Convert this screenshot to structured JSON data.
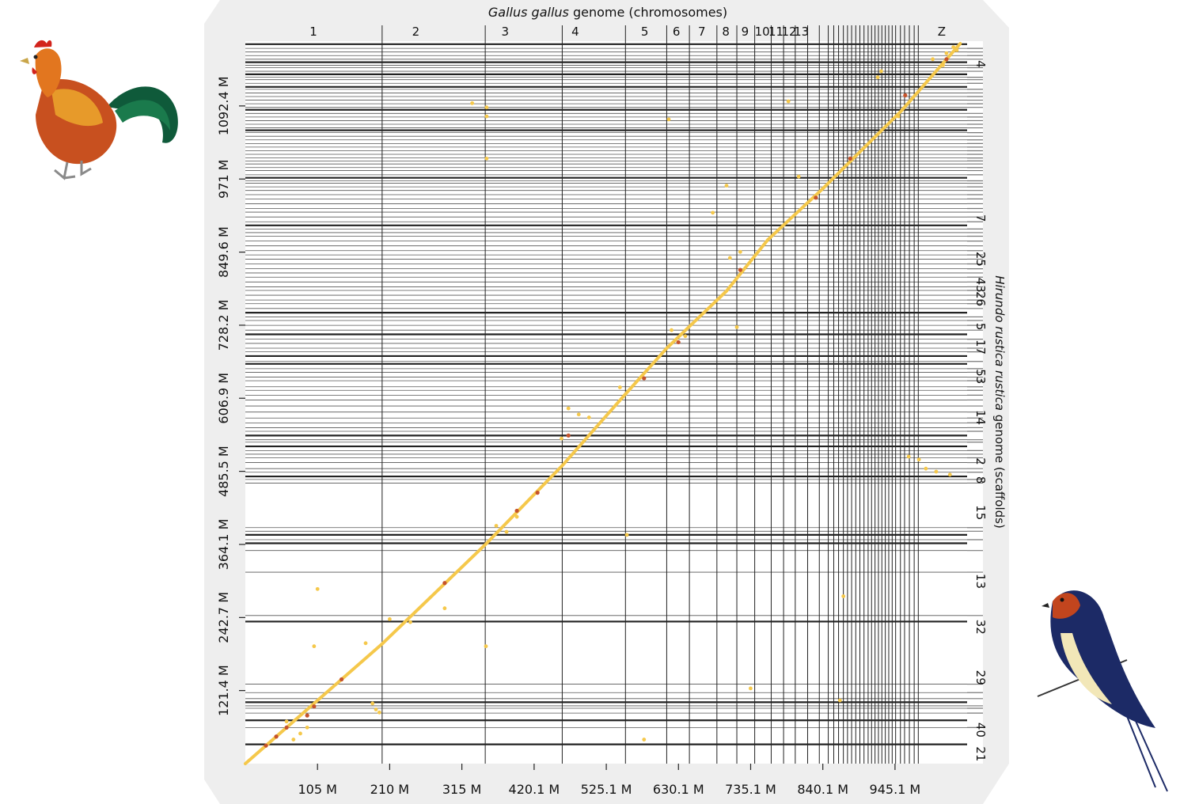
{
  "colors": {
    "panel": "#eeeeee",
    "grid_strong": "#222222",
    "grid_light": "#555555",
    "points": "#f5c84b",
    "points_strong": "#c5532b",
    "background": "#ffffff"
  },
  "icons": {
    "rooster": "rooster-illustration",
    "swallow": "swallow-illustration"
  },
  "chart_data": {
    "type": "scatter",
    "title_top_italic": "Gallus gallus",
    "title_top_rest": " genome (chromosomes)",
    "title_right_italic": "Hirundo rustica rustica",
    "title_right_rest": " genome (scaffolds)",
    "xlim": [
      0,
      1050
    ],
    "ylim": [
      0,
      1200
    ],
    "x_ticks": [
      {
        "value": 105,
        "label": "105 M"
      },
      {
        "value": 210,
        "label": "210 M"
      },
      {
        "value": 315,
        "label": "315 M"
      },
      {
        "value": 420.1,
        "label": "420.1 M"
      },
      {
        "value": 525.1,
        "label": "525.1 M"
      },
      {
        "value": 630.1,
        "label": "630.1 M"
      },
      {
        "value": 735.1,
        "label": "735.1 M"
      },
      {
        "value": 840.1,
        "label": "840.1 M"
      },
      {
        "value": 945.1,
        "label": "945.1 M"
      }
    ],
    "y_ticks": [
      {
        "value": 121.4,
        "label": "121.4 M"
      },
      {
        "value": 242.7,
        "label": "242.7 M"
      },
      {
        "value": 364.1,
        "label": "364.1 M"
      },
      {
        "value": 485.5,
        "label": "485.5 M"
      },
      {
        "value": 606.9,
        "label": "606.9 M"
      },
      {
        "value": 728.2,
        "label": "728.2 M"
      },
      {
        "value": 849.6,
        "label": "849.6 M"
      },
      {
        "value": 971,
        "label": "971 M"
      },
      {
        "value": 1092.4,
        "label": "1092.4 M"
      }
    ],
    "x_chromosome_labels": [
      {
        "label": "1",
        "pos": 99
      },
      {
        "label": "2",
        "pos": 248
      },
      {
        "label": "3",
        "pos": 378
      },
      {
        "label": "4",
        "pos": 480
      },
      {
        "label": "5",
        "pos": 581
      },
      {
        "label": "6",
        "pos": 627
      },
      {
        "label": "7",
        "pos": 664
      },
      {
        "label": "8",
        "pos": 699
      },
      {
        "label": "9",
        "pos": 727
      },
      {
        "label": "10",
        "pos": 752
      },
      {
        "label": "11",
        "pos": 772
      },
      {
        "label": "12",
        "pos": 791
      },
      {
        "label": "13",
        "pos": 809
      },
      {
        "label": "Z",
        "pos": 1013
      }
    ],
    "x_boundaries": [
      199,
      349,
      461,
      553,
      613,
      646,
      686,
      715,
      741,
      765,
      783,
      800,
      818,
      835,
      848,
      856,
      863,
      870,
      876,
      882,
      888,
      894,
      900,
      906,
      911,
      916,
      921,
      926,
      931,
      936,
      941,
      946,
      953,
      959,
      966,
      973,
      979
    ],
    "y_scaffold_labels": [
      {
        "label": "21",
        "pos": 16
      },
      {
        "label": "40",
        "pos": 56
      },
      {
        "label": "29",
        "pos": 143
      },
      {
        "label": "32",
        "pos": 227
      },
      {
        "label": "13",
        "pos": 303
      },
      {
        "label": "15",
        "pos": 417
      },
      {
        "label": "8",
        "pos": 471
      },
      {
        "label": "2",
        "pos": 502
      },
      {
        "label": "14",
        "pos": 575
      },
      {
        "label": "53",
        "pos": 643
      },
      {
        "label": "17",
        "pos": 692
      },
      {
        "label": "5",
        "pos": 726
      },
      {
        "label": "43",
        "pos": 795
      },
      {
        "label": "26",
        "pos": 772
      },
      {
        "label": "25",
        "pos": 838
      },
      {
        "label": "7",
        "pos": 906
      },
      {
        "label": "4",
        "pos": 1162
      }
    ],
    "y_boundaries_strong": [
      32,
      72,
      102,
      236,
      366,
      380,
      477,
      527,
      545,
      664,
      677,
      713,
      749,
      894,
      973,
      1052,
      1086,
      1124,
      1145,
      1165,
      1195
    ],
    "y_boundaries_light": [
      60,
      84,
      92,
      96,
      108,
      118,
      132,
      246,
      318,
      354,
      372,
      386,
      392,
      466,
      472,
      484,
      490,
      500,
      508,
      514,
      520,
      534,
      538,
      552,
      558,
      566,
      574,
      584,
      594,
      604,
      612,
      620,
      626,
      636,
      642,
      650,
      656,
      668,
      684,
      690,
      698,
      705,
      720,
      728,
      736,
      742,
      756,
      764,
      770,
      778,
      786,
      792,
      800,
      808,
      815,
      822,
      830,
      838,
      845,
      852,
      860,
      868,
      876,
      882,
      888,
      900,
      908,
      916,
      922,
      930,
      938,
      945,
      952,
      958,
      964,
      968,
      978,
      985,
      990,
      996,
      1001,
      1006,
      1012,
      1018,
      1024,
      1030,
      1036,
      1042,
      1048,
      1056,
      1062,
      1068,
      1074,
      1080,
      1090,
      1096,
      1102,
      1108,
      1114,
      1120,
      1130,
      1136,
      1140,
      1150,
      1156,
      1160,
      1170,
      1176,
      1182,
      1188
    ],
    "diagonal_series": [
      {
        "name": "",
        "segments": [
          [
            0,
            0,
            200,
            200
          ],
          [
            200,
            200,
            351,
            366
          ],
          [
            351,
            366,
            461,
            495
          ],
          [
            461,
            495,
            550,
            610
          ],
          [
            550,
            610,
            613,
            690
          ],
          [
            613,
            690,
            700,
            785
          ],
          [
            700,
            785,
            760,
            870
          ],
          [
            760,
            870,
            840,
            955
          ],
          [
            840,
            955,
            955,
            1085
          ],
          [
            955,
            1085,
            1040,
            1196
          ]
        ]
      }
    ],
    "outlier_points": [
      [
        330,
        1097
      ],
      [
        351,
        1090
      ],
      [
        351,
        1075
      ],
      [
        351,
        1005
      ],
      [
        616,
        1070
      ],
      [
        790,
        1100
      ],
      [
        700,
        960
      ],
      [
        680,
        915
      ],
      [
        805,
        975
      ],
      [
        715,
        725
      ],
      [
        555,
        380
      ],
      [
        580,
        40
      ],
      [
        105,
        290
      ],
      [
        100,
        195
      ],
      [
        185,
        100
      ],
      [
        190,
        90
      ],
      [
        195,
        85
      ],
      [
        175,
        200
      ],
      [
        350,
        195
      ],
      [
        290,
        258
      ],
      [
        735,
        125
      ],
      [
        870,
        278
      ],
      [
        865,
        105
      ],
      [
        965,
        510
      ],
      [
        980,
        505
      ],
      [
        990,
        490
      ],
      [
        1005,
        485
      ],
      [
        1025,
        480
      ],
      [
        950,
        1075
      ],
      [
        920,
        1140
      ],
      [
        925,
        1150
      ],
      [
        70,
        40
      ],
      [
        60,
        70
      ],
      [
        80,
        50
      ],
      [
        90,
        60
      ],
      [
        210,
        240
      ],
      [
        240,
        235
      ],
      [
        365,
        395
      ],
      [
        380,
        385
      ],
      [
        395,
        410
      ],
      [
        470,
        590
      ],
      [
        485,
        580
      ],
      [
        500,
        575
      ],
      [
        460,
        540
      ],
      [
        545,
        625
      ],
      [
        620,
        720
      ],
      [
        640,
        710
      ],
      [
        705,
        840
      ],
      [
        720,
        850
      ],
      [
        1000,
        1170
      ],
      [
        1020,
        1180
      ],
      [
        1030,
        1190
      ],
      [
        1035,
        1185
      ],
      [
        1015,
        1160
      ]
    ],
    "strong_points": [
      [
        30,
        30
      ],
      [
        45,
        45
      ],
      [
        60,
        60
      ],
      [
        90,
        80
      ],
      [
        100,
        95
      ],
      [
        140,
        140
      ],
      [
        290,
        300
      ],
      [
        395,
        420
      ],
      [
        425,
        450
      ],
      [
        470,
        545
      ],
      [
        580,
        640
      ],
      [
        630,
        700
      ],
      [
        720,
        820
      ],
      [
        830,
        940
      ],
      [
        880,
        1005
      ],
      [
        960,
        1110
      ],
      [
        1020,
        1170
      ]
    ]
  }
}
